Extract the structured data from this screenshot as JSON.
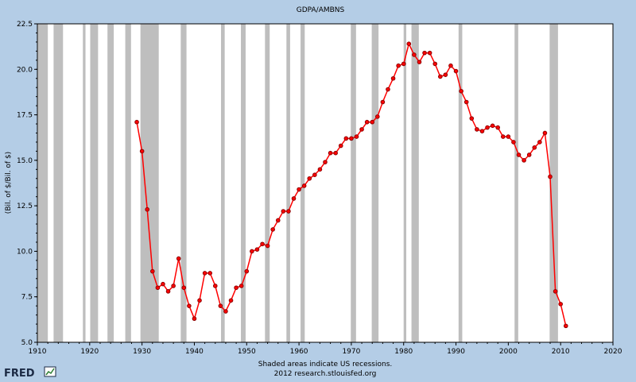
{
  "chart_data": {
    "type": "line",
    "title": "GDPA/AMBNS",
    "ylabel": "(Bil. of $/Bil. of $)",
    "xlabel": "",
    "xlim": [
      1910,
      2020
    ],
    "ylim": [
      5.0,
      22.5
    ],
    "grid": false,
    "x_ticks": [
      1910,
      1920,
      1930,
      1940,
      1950,
      1960,
      1970,
      1980,
      1990,
      2000,
      2010,
      2020
    ],
    "x_tick_labels": [
      "1910",
      "1920",
      "1930",
      "1940",
      "1950",
      "1960",
      "1970",
      "1980",
      "1990",
      "2000",
      "2010",
      "2020"
    ],
    "y_ticks": [
      5.0,
      7.5,
      10.0,
      12.5,
      15.0,
      17.5,
      20.0,
      22.5
    ],
    "y_tick_labels": [
      "5.0",
      "7.5",
      "10.0",
      "12.5",
      "15.0",
      "17.5",
      "20.0",
      "22.5"
    ],
    "recessions": [
      [
        1910.1,
        1912.0
      ],
      [
        1913.1,
        1914.9
      ],
      [
        1918.7,
        1919.2
      ],
      [
        1920.1,
        1921.6
      ],
      [
        1923.4,
        1924.6
      ],
      [
        1926.8,
        1927.9
      ],
      [
        1929.7,
        1933.2
      ],
      [
        1937.4,
        1938.5
      ],
      [
        1945.1,
        1945.8
      ],
      [
        1948.9,
        1949.8
      ],
      [
        1953.5,
        1954.4
      ],
      [
        1957.6,
        1958.3
      ],
      [
        1960.3,
        1961.1
      ],
      [
        1969.9,
        1970.9
      ],
      [
        1973.9,
        1975.2
      ],
      [
        1980.0,
        1980.5
      ],
      [
        1981.5,
        1982.9
      ],
      [
        1990.5,
        1991.2
      ],
      [
        2001.2,
        2001.9
      ],
      [
        2007.9,
        2009.5
      ]
    ],
    "series": [
      {
        "color": "#ff0000",
        "marker_color": "#8b0000",
        "x": [
          1929,
          1930,
          1931,
          1932,
          1933,
          1934,
          1935,
          1936,
          1937,
          1938,
          1939,
          1940,
          1941,
          1942,
          1943,
          1944,
          1945,
          1946,
          1947,
          1948,
          1949,
          1950,
          1951,
          1952,
          1953,
          1954,
          1955,
          1956,
          1957,
          1958,
          1959,
          1960,
          1961,
          1962,
          1963,
          1964,
          1965,
          1966,
          1967,
          1968,
          1969,
          1970,
          1971,
          1972,
          1973,
          1974,
          1975,
          1976,
          1977,
          1978,
          1979,
          1980,
          1981,
          1982,
          1983,
          1984,
          1985,
          1986,
          1987,
          1988,
          1989,
          1990,
          1991,
          1992,
          1993,
          1994,
          1995,
          1996,
          1997,
          1998,
          1999,
          2000,
          2001,
          2002,
          2003,
          2004,
          2005,
          2006,
          2007,
          2008,
          2009,
          2010,
          2011
        ],
        "y": [
          17.1,
          15.5,
          12.3,
          8.9,
          8.0,
          8.2,
          7.8,
          8.1,
          9.6,
          8.0,
          7.0,
          6.3,
          7.3,
          8.8,
          8.8,
          8.1,
          7.0,
          6.7,
          7.3,
          8.0,
          8.1,
          8.9,
          10.0,
          10.1,
          10.4,
          10.3,
          11.2,
          11.7,
          12.2,
          12.2,
          12.9,
          13.4,
          13.6,
          14.0,
          14.2,
          14.5,
          14.9,
          15.4,
          15.4,
          15.8,
          16.2,
          16.2,
          16.3,
          16.7,
          17.1,
          17.1,
          17.4,
          18.2,
          18.9,
          19.5,
          20.2,
          20.3,
          21.4,
          20.8,
          20.4,
          20.9,
          20.9,
          20.3,
          19.6,
          19.7,
          20.2,
          19.9,
          18.8,
          18.2,
          17.3,
          16.7,
          16.6,
          16.8,
          16.9,
          16.8,
          16.3,
          16.3,
          16.0,
          15.3,
          15.0,
          15.3,
          15.7,
          16.0,
          16.5,
          14.1,
          7.8,
          7.1,
          5.9
        ]
      }
    ]
  },
  "footer": {
    "note_line1": "Shaded areas indicate US recessions.",
    "note_line2": "2012 research.stlouisfed.org",
    "logo": "FRED"
  }
}
